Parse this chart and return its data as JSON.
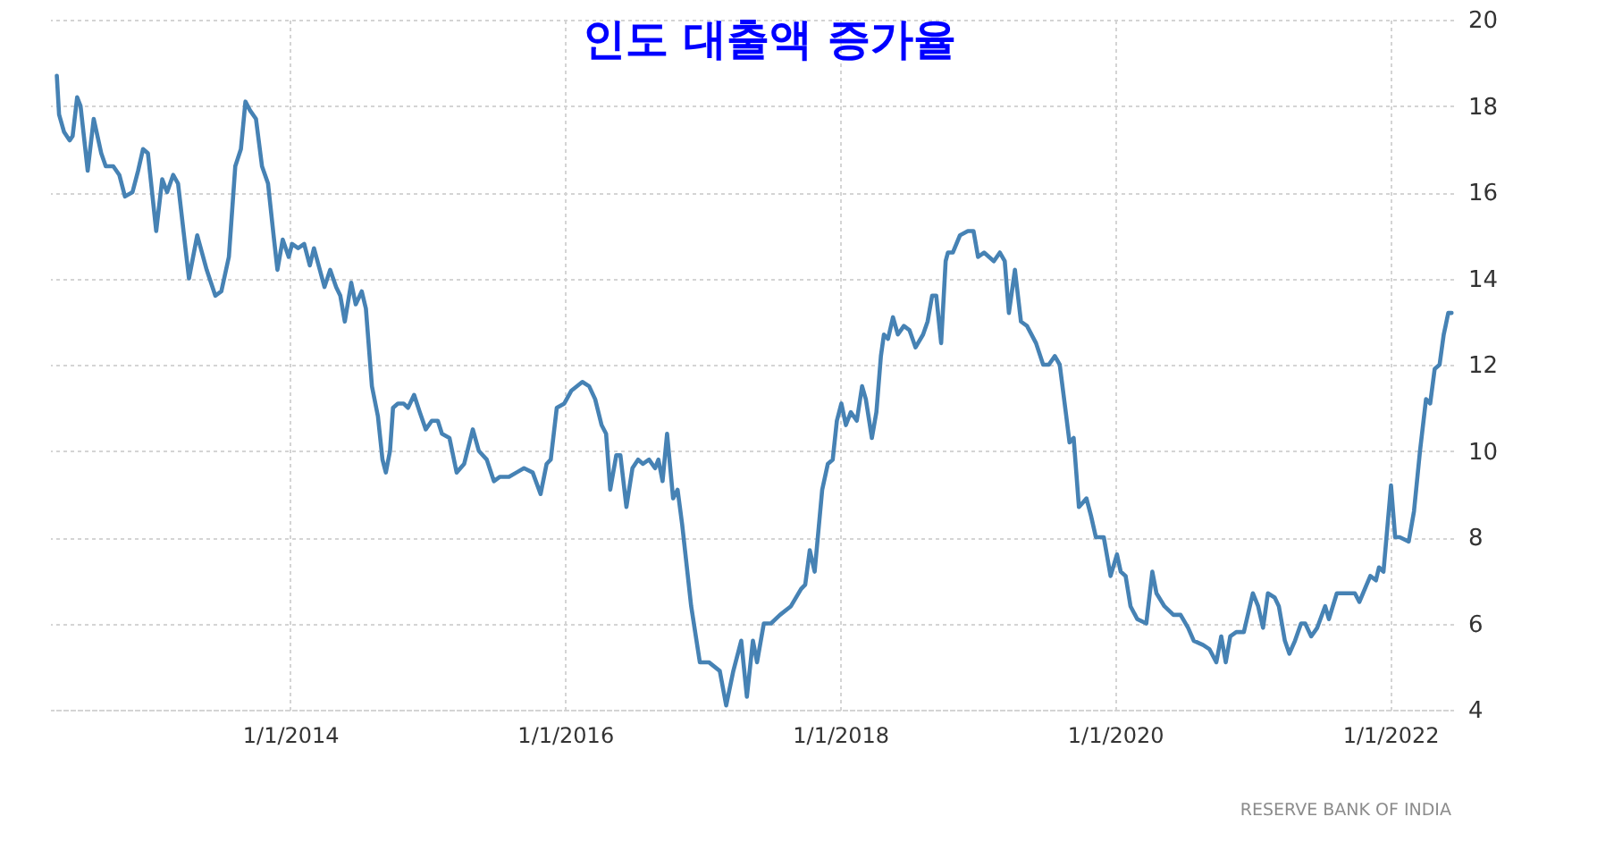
{
  "chart_data": {
    "type": "line",
    "title": "인도 대출액 증가율",
    "annotations": [
      "RESERVE BANK OF INDIA"
    ],
    "xlim": [
      "2012-04-03",
      "2022-06-17"
    ],
    "xticks": [
      {
        "value": "2014-01-01",
        "label": "1/1/2014"
      },
      {
        "value": "2016-01-01",
        "label": "1/1/2016"
      },
      {
        "value": "2018-01-01",
        "label": "1/1/2018"
      },
      {
        "value": "2020-01-01",
        "label": "1/1/2020"
      },
      {
        "value": "2022-01-01",
        "label": "1/1/2022"
      }
    ],
    "ylim": [
      4,
      20
    ],
    "yticks": [
      4,
      6,
      8,
      10,
      12,
      14,
      16,
      18,
      20
    ],
    "grid": true,
    "x": [
      "2012-04-21",
      "2012-04-27",
      "2012-05-10",
      "2012-05-25",
      "2012-06-02",
      "2012-06-14",
      "2012-06-23",
      "2012-07-12",
      "2012-07-28",
      "2012-08-17",
      "2012-08-29",
      "2012-09-18",
      "2012-10-04",
      "2012-10-19",
      "2012-11-08",
      "2012-11-23",
      "2012-12-06",
      "2012-12-19",
      "2013-01-10",
      "2013-01-26",
      "2013-02-08",
      "2013-02-24",
      "2013-03-09",
      "2013-04-07",
      "2013-04-29",
      "2013-05-24",
      "2013-06-16",
      "2013-07-02",
      "2013-07-22",
      "2013-08-08",
      "2013-08-23",
      "2013-09-04",
      "2013-09-16",
      "2013-10-02",
      "2013-10-18",
      "2013-11-03",
      "2013-11-19",
      "2013-11-28",
      "2013-12-12",
      "2013-12-28",
      "2014-01-06",
      "2014-01-22",
      "2014-02-07",
      "2014-02-22",
      "2014-03-05",
      "2014-04-02",
      "2014-04-17",
      "2014-05-03",
      "2014-05-14",
      "2014-05-26",
      "2014-06-12",
      "2014-06-24",
      "2014-07-10",
      "2014-07-21",
      "2014-08-06",
      "2014-08-22",
      "2014-09-03",
      "2014-09-12",
      "2014-09-23",
      "2014-10-01",
      "2014-10-14",
      "2014-10-29",
      "2014-11-10",
      "2014-11-26",
      "2014-12-11",
      "2014-12-27",
      "2015-01-12",
      "2015-01-28",
      "2015-02-08",
      "2015-02-28",
      "2015-03-19",
      "2015-04-08",
      "2015-05-01",
      "2015-05-17",
      "2015-06-07",
      "2015-06-26",
      "2015-07-12",
      "2015-08-05",
      "2015-08-25",
      "2015-09-14",
      "2015-10-07",
      "2015-10-28",
      "2015-11-13",
      "2015-11-24",
      "2015-12-10",
      "2015-12-30",
      "2016-01-18",
      "2016-02-16",
      "2016-03-05",
      "2016-03-21",
      "2016-04-07",
      "2016-04-19",
      "2016-04-30",
      "2016-05-16",
      "2016-05-27",
      "2016-06-12",
      "2016-06-28",
      "2016-07-13",
      "2016-07-26",
      "2016-08-11",
      "2016-08-27",
      "2016-09-05",
      "2016-09-16",
      "2016-09-28",
      "2016-10-14",
      "2016-10-26",
      "2016-11-07",
      "2016-12-01",
      "2016-12-24",
      "2017-01-17",
      "2017-02-15",
      "2017-03-04",
      "2017-03-23",
      "2017-04-13",
      "2017-04-28",
      "2017-05-14",
      "2017-05-25",
      "2017-06-12",
      "2017-07-01",
      "2017-07-25",
      "2017-08-23",
      "2017-09-19",
      "2017-09-30",
      "2017-10-12",
      "2017-10-25",
      "2017-11-14",
      "2017-11-29",
      "2017-12-12",
      "2017-12-23",
      "2018-01-04",
      "2018-01-16",
      "2018-01-29",
      "2018-02-14",
      "2018-02-28",
      "2018-03-10",
      "2018-03-26",
      "2018-04-07",
      "2018-04-19",
      "2018-04-27",
      "2018-05-08",
      "2018-05-21",
      "2018-06-03",
      "2018-06-19",
      "2018-07-04",
      "2018-07-20",
      "2018-08-09",
      "2018-08-21",
      "2018-09-02",
      "2018-09-13",
      "2018-09-26",
      "2018-10-08",
      "2018-10-14",
      "2018-10-27",
      "2018-11-15",
      "2018-12-06",
      "2018-12-21",
      "2019-01-02",
      "2019-01-18",
      "2019-02-13",
      "2019-03-01",
      "2019-03-14",
      "2019-03-25",
      "2019-04-10",
      "2019-04-26",
      "2019-05-12",
      "2019-06-05",
      "2019-06-24",
      "2019-07-09",
      "2019-07-25",
      "2019-08-07",
      "2019-08-23",
      "2019-09-02",
      "2019-09-13",
      "2019-09-27",
      "2019-10-07",
      "2019-10-17",
      "2019-10-29",
      "2019-11-11",
      "2019-12-02",
      "2019-12-20",
      "2020-01-06",
      "2020-01-16",
      "2020-01-29",
      "2020-02-11",
      "2020-02-29",
      "2020-03-24",
      "2020-04-09",
      "2020-04-20",
      "2020-05-11",
      "2020-06-04",
      "2020-06-23",
      "2020-07-13",
      "2020-07-28",
      "2020-08-22",
      "2020-09-08",
      "2020-09-26",
      "2020-10-09",
      "2020-10-21",
      "2020-11-02",
      "2020-11-18",
      "2020-12-08",
      "2021-01-01",
      "2021-01-15",
      "2021-01-28",
      "2021-02-10",
      "2021-02-28",
      "2021-03-11",
      "2021-03-27",
      "2021-04-08",
      "2021-04-23",
      "2021-05-09",
      "2021-05-20",
      "2021-06-05",
      "2021-06-21",
      "2021-07-12",
      "2021-07-22",
      "2021-08-12",
      "2021-09-06",
      "2021-09-29",
      "2021-10-11",
      "2021-11-09",
      "2021-11-24",
      "2021-12-02",
      "2021-12-14",
      "2022-01-03",
      "2022-01-14",
      "2022-01-26",
      "2022-02-19",
      "2022-03-05",
      "2022-03-21",
      "2022-04-06",
      "2022-04-17",
      "2022-04-29",
      "2022-05-12",
      "2022-05-23",
      "2022-05-28",
      "2022-06-04",
      "2022-06-13"
    ],
    "series": [
      {
        "color": "#4682b4",
        "values": [
          18.7,
          17.8,
          17.4,
          17.2,
          17.3,
          18.2,
          18.0,
          16.5,
          17.7,
          16.9,
          16.6,
          16.6,
          16.4,
          15.9,
          16.0,
          16.5,
          17.0,
          16.9,
          15.1,
          16.3,
          16.0,
          16.4,
          16.2,
          14.0,
          15.0,
          14.2,
          13.6,
          13.7,
          14.5,
          16.6,
          17.0,
          18.1,
          17.9,
          17.7,
          16.6,
          16.2,
          14.9,
          14.2,
          14.9,
          14.5,
          14.8,
          14.7,
          14.8,
          14.3,
          14.7,
          13.8,
          14.2,
          13.8,
          13.6,
          13.0,
          13.9,
          13.4,
          13.7,
          13.3,
          11.5,
          10.8,
          9.8,
          9.5,
          10.0,
          11.0,
          11.1,
          11.1,
          11.0,
          11.3,
          10.9,
          10.5,
          10.7,
          10.7,
          10.4,
          10.3,
          9.5,
          9.7,
          10.5,
          10.0,
          9.8,
          9.3,
          9.4,
          9.4,
          9.5,
          9.6,
          9.5,
          9.0,
          9.7,
          9.8,
          11.0,
          11.1,
          11.4,
          11.6,
          11.5,
          11.2,
          10.6,
          10.4,
          9.1,
          9.9,
          9.9,
          8.7,
          9.6,
          9.8,
          9.7,
          9.8,
          9.6,
          9.8,
          9.3,
          10.4,
          8.9,
          9.1,
          8.3,
          6.4,
          5.1,
          5.1,
          4.9,
          4.1,
          4.9,
          5.6,
          4.3,
          5.6,
          5.1,
          6.0,
          6.0,
          6.2,
          6.4,
          6.8,
          6.9,
          7.7,
          7.2,
          9.1,
          9.7,
          9.8,
          10.7,
          11.1,
          10.6,
          10.9,
          10.7,
          11.5,
          11.2,
          10.3,
          10.9,
          12.2,
          12.7,
          12.6,
          13.1,
          12.7,
          12.9,
          12.8,
          12.4,
          12.7,
          13.0,
          13.6,
          13.6,
          12.5,
          14.4,
          14.6,
          14.6,
          15.0,
          15.1,
          15.1,
          14.5,
          14.6,
          14.4,
          14.6,
          14.4,
          13.2,
          14.2,
          13.0,
          12.9,
          12.5,
          12.0,
          12.0,
          12.2,
          12.0,
          10.9,
          10.2,
          10.3,
          8.7,
          8.8,
          8.9,
          8.5,
          8.0,
          8.0,
          7.1,
          7.6,
          7.2,
          7.1,
          6.4,
          6.1,
          6.0,
          7.2,
          6.7,
          6.4,
          6.2,
          6.2,
          5.9,
          5.6,
          5.5,
          5.4,
          5.1,
          5.7,
          5.1,
          5.7,
          5.8,
          5.8,
          6.7,
          6.4,
          5.9,
          6.7,
          6.6,
          6.4,
          5.6,
          5.3,
          5.6,
          6.0,
          6.0,
          5.7,
          5.9,
          6.4,
          6.1,
          6.7,
          6.7,
          6.7,
          6.5,
          7.1,
          7.0,
          7.3,
          7.2,
          9.2,
          8.0,
          8.0,
          7.9,
          8.6,
          10.0,
          11.2,
          11.1,
          11.9,
          12.0,
          12.7,
          12.9,
          13.2,
          13.2
        ]
      }
    ]
  }
}
